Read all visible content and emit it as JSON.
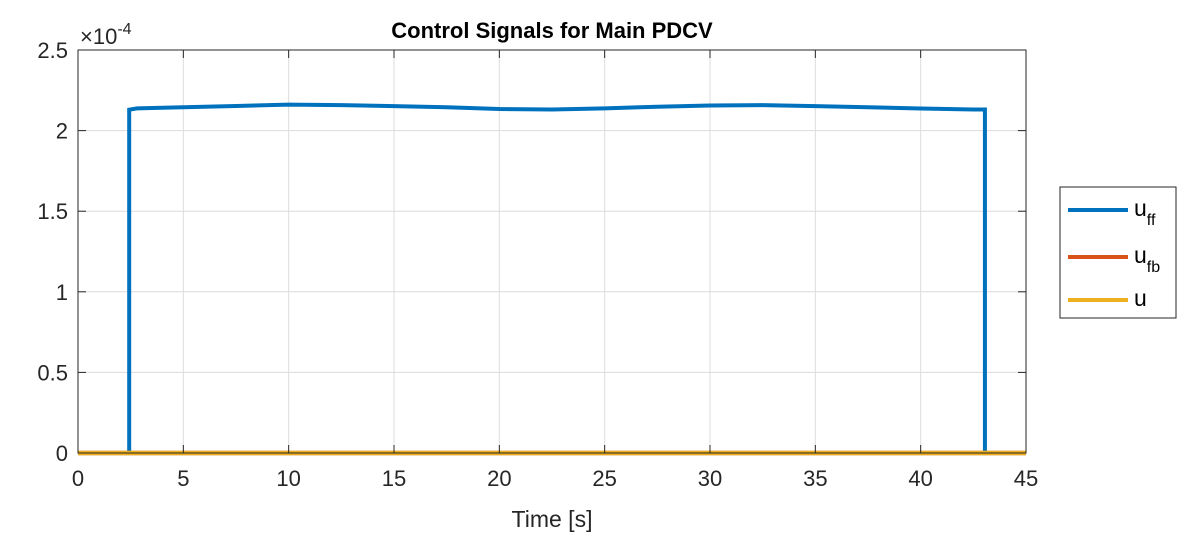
{
  "chart_data": {
    "type": "line",
    "title": "Control Signals for Main PDCV",
    "xlabel": "Time [s]",
    "ylabel": "",
    "xlim": [
      0,
      45
    ],
    "ylim": [
      0,
      0.00025
    ],
    "grid": true,
    "legend_position": "outside-right",
    "y_exponent": {
      "base": "×10",
      "power": "-4"
    },
    "x_ticks": [
      {
        "value": 0,
        "label": "0"
      },
      {
        "value": 5,
        "label": "5"
      },
      {
        "value": 10,
        "label": "10"
      },
      {
        "value": 15,
        "label": "15"
      },
      {
        "value": 20,
        "label": "20"
      },
      {
        "value": 25,
        "label": "25"
      },
      {
        "value": 30,
        "label": "30"
      },
      {
        "value": 35,
        "label": "35"
      },
      {
        "value": 40,
        "label": "40"
      },
      {
        "value": 45,
        "label": "45"
      }
    ],
    "y_ticks": [
      {
        "value": 0,
        "label": "0"
      },
      {
        "value": 5e-05,
        "label": "0.5"
      },
      {
        "value": 0.0001,
        "label": "1"
      },
      {
        "value": 0.00015,
        "label": "1.5"
      },
      {
        "value": 0.0002,
        "label": "2"
      },
      {
        "value": 0.00025,
        "label": "2.5"
      }
    ],
    "series": [
      {
        "name": "u",
        "name_sub": "ff",
        "color": "#0072BD",
        "x": [
          0,
          2.43,
          2.43,
          2.8,
          5,
          7.5,
          10,
          12.5,
          15,
          17.5,
          20,
          22.5,
          25,
          27.5,
          30,
          32.5,
          35,
          37.5,
          40,
          42.5,
          43.05,
          43.05,
          45
        ],
        "y": [
          0,
          0,
          0.000213,
          0.0002138,
          0.0002145,
          0.0002153,
          0.0002161,
          0.0002158,
          0.0002152,
          0.0002145,
          0.0002134,
          0.0002131,
          0.0002138,
          0.0002148,
          0.0002156,
          0.0002158,
          0.0002152,
          0.0002145,
          0.0002137,
          0.0002131,
          0.0002131,
          0,
          0
        ]
      },
      {
        "name": "u",
        "name_sub": "fb",
        "color": "#D95319",
        "x": [
          0,
          45
        ],
        "y": [
          0,
          0
        ]
      },
      {
        "name": "u",
        "name_sub": "",
        "color": "#EDB120",
        "x": [
          0,
          45
        ],
        "y": [
          0,
          0
        ]
      }
    ]
  }
}
